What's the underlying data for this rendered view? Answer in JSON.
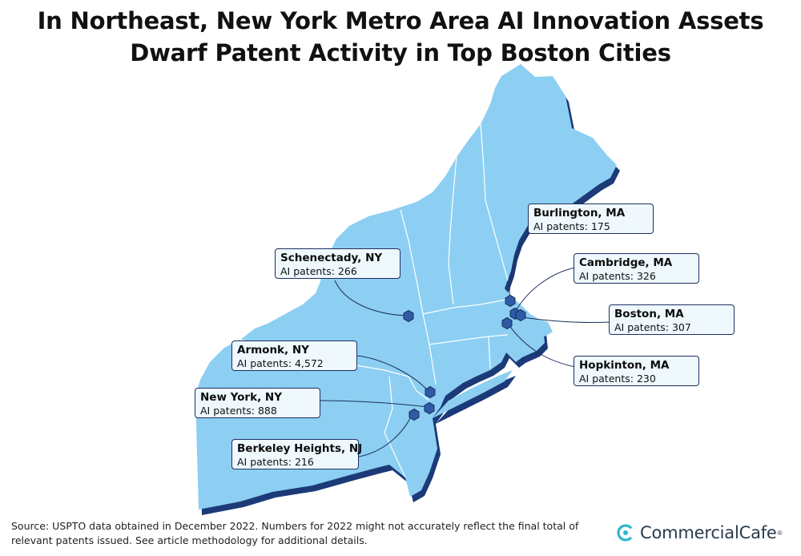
{
  "title": {
    "line1": "In Northeast, New York Metro Area AI Innovation Assets",
    "line2": "Dwarf Patent Activity in Top Boston Cities"
  },
  "colors": {
    "land": "#8ccff2",
    "land_shadow": "#1c3a78",
    "state_border": "#ffffff",
    "marker": "#2f5aa6",
    "marker_stroke": "#1a2d5c",
    "callout_bg": "#eef8fd",
    "callout_border": "#1f2f5f",
    "leader": "#1f2f5f",
    "brand_accent": "#2fb6cf"
  },
  "locations": [
    {
      "id": "burlington",
      "city": "Burlington, MA",
      "label": "AI patents:",
      "value": "175"
    },
    {
      "id": "schenectady",
      "city": "Schenectady, NY",
      "label": "AI patents:",
      "value": "266"
    },
    {
      "id": "cambridge",
      "city": "Cambridge, MA",
      "label": "AI patents:",
      "value": "326"
    },
    {
      "id": "boston",
      "city": "Boston, MA",
      "label": "AI patents:",
      "value": "307"
    },
    {
      "id": "armonk",
      "city": "Armonk, NY",
      "label": "AI patents:",
      "value": "4,572"
    },
    {
      "id": "hopkinton",
      "city": "Hopkinton, MA",
      "label": "AI patents:",
      "value": "230"
    },
    {
      "id": "newyork",
      "city": "New York, NY",
      "label": "AI patents:",
      "value": "888"
    },
    {
      "id": "berkeley",
      "city": "Berkeley Heights, NJ",
      "label": "AI patents:",
      "value": "216"
    }
  ],
  "footer": {
    "source": "Source: USPTO data obtained in December 2022. Numbers for 2022 might not accurately reflect the final total of relevant patents issued. See article methodology for additional details."
  },
  "brand": {
    "name": "CommercialCafe",
    "reg": "®",
    "icon": "commercialcafe-logo-icon"
  }
}
